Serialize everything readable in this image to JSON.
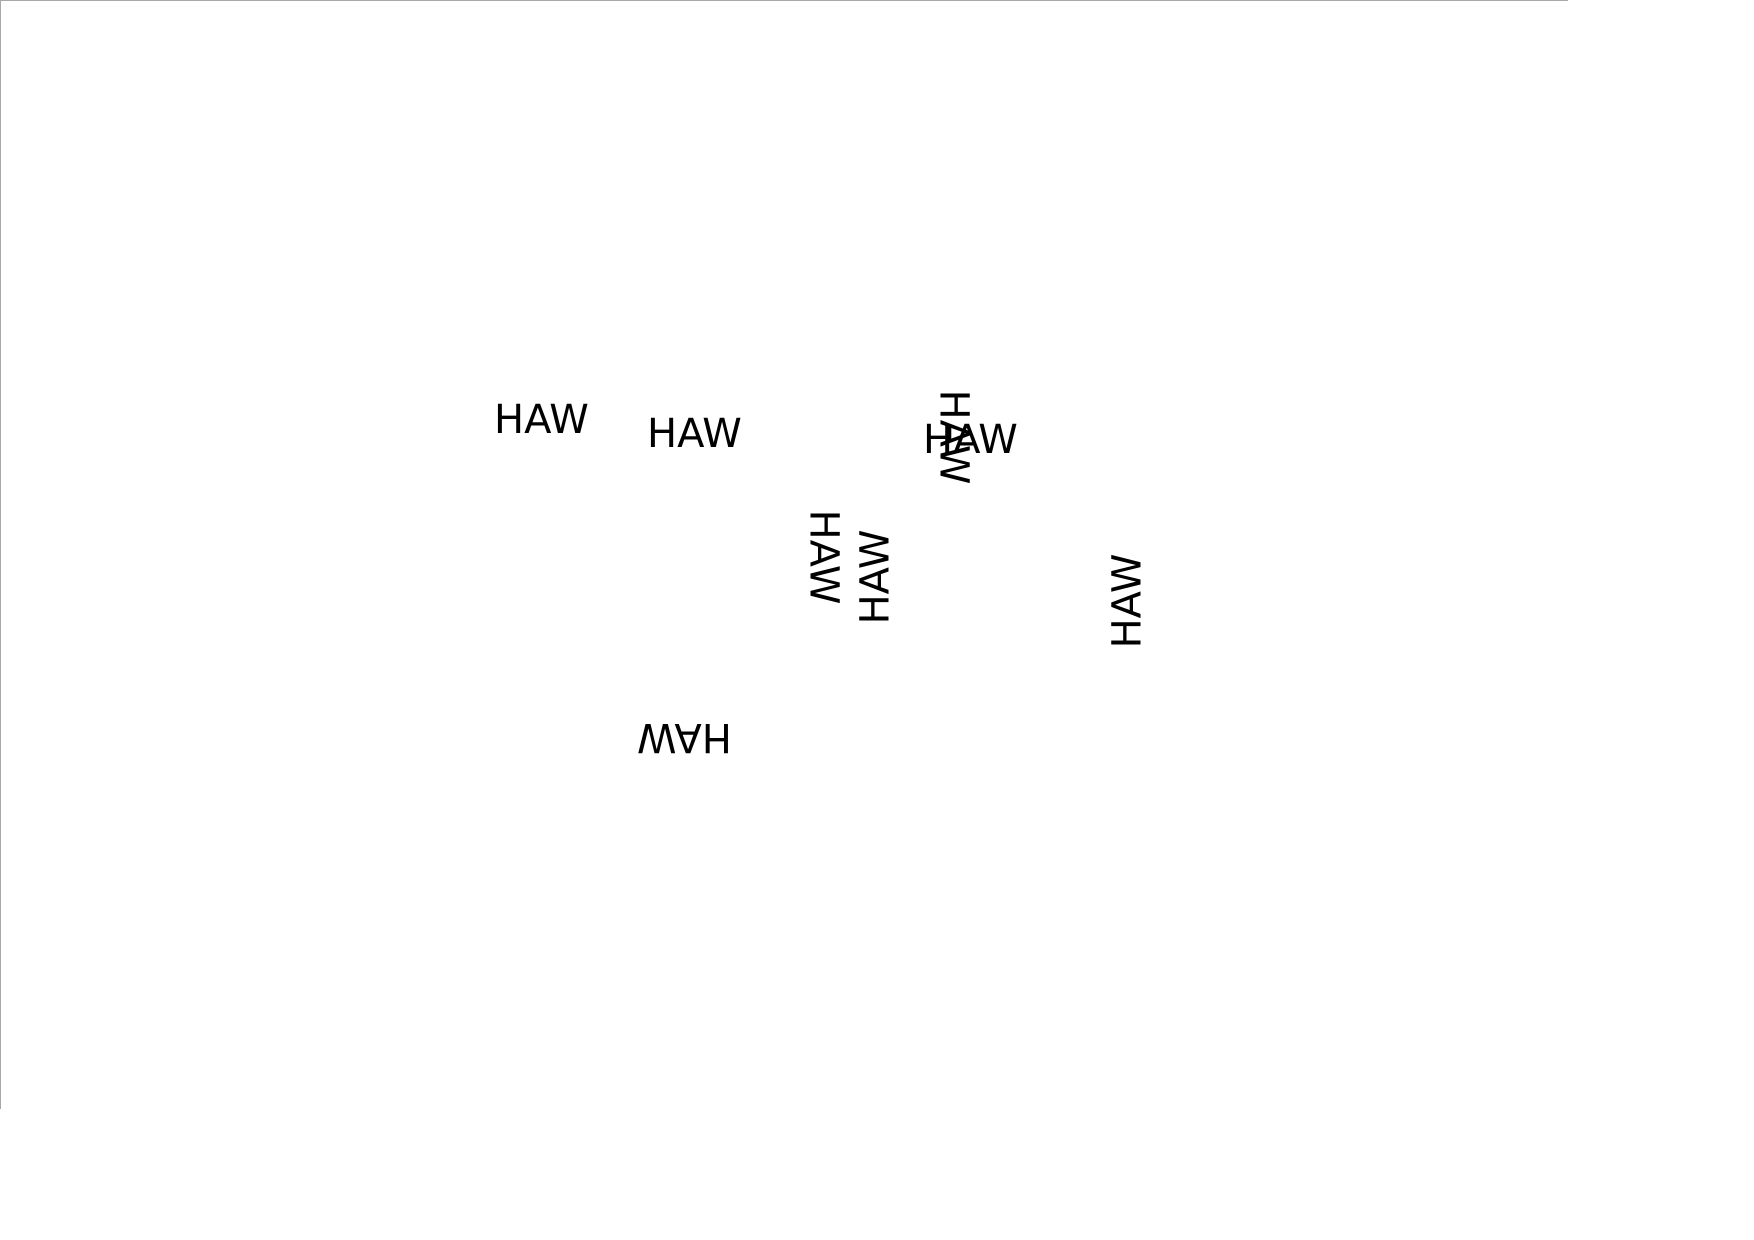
{
  "page": {
    "words": [
      {
        "text": "HAW",
        "orientation": "normal"
      },
      {
        "text": "HAW",
        "orientation": "normal"
      },
      {
        "text": "HAW",
        "orientation": "normal"
      },
      {
        "text": "HAW",
        "orientation": "rotated-90-clockwise"
      },
      {
        "text": "HAW",
        "orientation": "rotated-90-clockwise"
      },
      {
        "text": "HAW",
        "orientation": "rotated-90-counterclockwise"
      },
      {
        "text": "HAW",
        "orientation": "rotated-90-counterclockwise"
      },
      {
        "text": "HAW",
        "orientation": "rotated-180"
      }
    ],
    "colors": {
      "background": "#ffffff",
      "text": "#000000",
      "page_border": "#a8a8a8"
    }
  }
}
